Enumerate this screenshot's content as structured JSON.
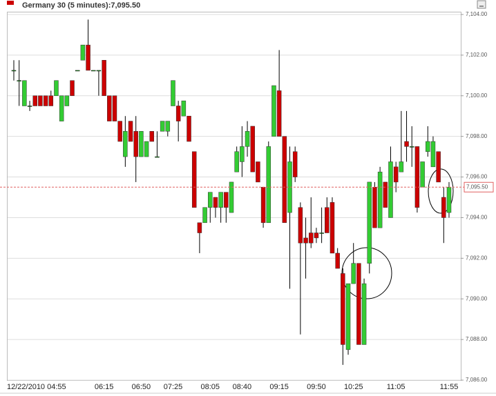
{
  "chart_data": {
    "type": "candlestick",
    "title": "Germany 30 (5 minutes):7,095.50",
    "categories": [
      "12/22/2010 04:55",
      null,
      null,
      null,
      null,
      null,
      null,
      null,
      null,
      null,
      null,
      null,
      null,
      null,
      null,
      null,
      null,
      "06:15",
      null,
      null,
      null,
      null,
      null,
      null,
      "06:50",
      null,
      null,
      null,
      null,
      null,
      "07:25",
      null,
      null,
      null,
      null,
      null,
      null,
      "08:05",
      null,
      null,
      null,
      null,
      null,
      "08:40",
      null,
      null,
      null,
      null,
      null,
      null,
      "09:15",
      null,
      null,
      null,
      null,
      null,
      null,
      "09:50",
      null,
      null,
      null,
      null,
      null,
      null,
      "10:25",
      null,
      null,
      null,
      null,
      null,
      null,
      null,
      "11:05",
      null,
      null,
      null,
      null,
      null,
      null,
      null,
      null,
      null,
      "11:55"
    ],
    "open": [
      7101.25,
      7100.75,
      7099.5,
      7099.5,
      7100,
      7100,
      7100,
      7100,
      7100,
      7098.75,
      7099.5,
      7100.75,
      7101.25,
      7101.75,
      7102.5,
      7101.25,
      7101.25,
      7101.75,
      7100,
      7100,
      7098.75,
      7097,
      7098.75,
      7098.25,
      7097,
      7097,
      7098.25,
      7097,
      7098.25,
      7098.25,
      7099.5,
      7099.5,
      7099,
      7099,
      7097.25,
      7093.75,
      7093.75,
      7094.5,
      7095,
      7094.5,
      7095.25,
      7094.25,
      7096.25,
      7096.75,
      7097.5,
      7098.5,
      7096.75,
      7095.5,
      7093.75,
      7098,
      7100.25,
      7098,
      7094.25,
      7097.25,
      7094.5,
      7093,
      7093.25,
      7093.25,
      7093.25,
      7094.5,
      7094.75,
      7092.25,
      7091.25,
      7087.5,
      7090.75,
      7091.75,
      7087.75,
      7091.75,
      7095.5,
      7093.5,
      7095.75,
      7094,
      7096.5,
      7096.25,
      7097.75,
      7097.5,
      7097.5,
      7095.5,
      7097.25,
      7096.5,
      7097.25,
      7095,
      7094.25
    ],
    "high": [
      7101.75,
      7101.75,
      7100.75,
      7099.75,
      7100,
      7100,
      7100,
      7100.25,
      7100.75,
      7100,
      7100,
      7100.75,
      7101.25,
      7102.5,
      7103.75,
      7101.25,
      7101.25,
      7101.75,
      7100,
      7100,
      7098.75,
      7099,
      7098.75,
      7099,
      7098.25,
      7097.75,
      7098.25,
      7098.25,
      7098.75,
      7098.75,
      7100.75,
      7099.75,
      7099.75,
      7099,
      7097.25,
      7093.75,
      7094.5,
      7095.25,
      7095,
      7095.25,
      7095.25,
      7095.75,
      7097.5,
      7098.5,
      7098.75,
      7098.5,
      7096.75,
      7095.5,
      7097.75,
      7100.5,
      7102.25,
      7098,
      7097.5,
      7097.5,
      7094.75,
      7094,
      7095,
      7093.5,
      7094.5,
      7095,
      7095,
      7092.5,
      7091.5,
      7090.75,
      7092.75,
      7091.75,
      7091,
      7095.75,
      7095.75,
      7096.5,
      7095.75,
      7097.5,
      7096.75,
      7099.25,
      7099.25,
      7098.5,
      7097.5,
      7096.75,
      7098.5,
      7098,
      7097.25,
      7095.5,
      7095.75
    ],
    "low": [
      7100.75,
      7099.5,
      7099.5,
      7099.25,
      7099.5,
      7099.5,
      7099.5,
      7099.5,
      7100,
      7098.75,
      7099.5,
      7100,
      7101.25,
      7101.75,
      7101.25,
      7101.25,
      7100,
      7100,
      7098.75,
      7098.75,
      7097.75,
      7096.5,
      7097.75,
      7095.75,
      7097,
      7097,
      7097.75,
      7097,
      7098.25,
      7098,
      7099.5,
      7097.75,
      7099,
      7097.75,
      7094.5,
      7092.25,
      7093.75,
      7093.75,
      7094,
      7093.75,
      7093.75,
      7094.25,
      7096.25,
      7096,
      7097,
      7096.25,
      7095.75,
      7093.5,
      7093.75,
      7098,
      7098,
      7093.75,
      7090.5,
      7095.75,
      7088.25,
      7091,
      7092.5,
      7092.75,
      7092.75,
      7093.25,
      7092.25,
      7091.5,
      7086.75,
      7087.25,
      7090.75,
      7087.75,
      7087.75,
      7091.25,
      7093.5,
      7093.5,
      7094.5,
      7094,
      7095.25,
      7096.25,
      7096.75,
      7096.5,
      7094.25,
      7095.5,
      7097,
      7096.5,
      7095.75,
      7092.75,
      7094
    ],
    "close": [
      7101.25,
      7100.75,
      7100.75,
      7099.5,
      7099.5,
      7099.5,
      7099.5,
      7099.5,
      7100.75,
      7100,
      7100,
      7100,
      7101.25,
      7102.5,
      7101.25,
      7101.25,
      7101.25,
      7100,
      7098.75,
      7098.75,
      7097.75,
      7098.25,
      7097.75,
      7097,
      7098.25,
      7097.75,
      7097.75,
      7097,
      7098.75,
      7098.75,
      7100.75,
      7098.75,
      7099.75,
      7097.75,
      7094.5,
      7093.25,
      7094.5,
      7095.25,
      7094.5,
      7095.25,
      7094.5,
      7095.75,
      7097.25,
      7097.5,
      7098.25,
      7096.25,
      7095.75,
      7093.75,
      7097.5,
      7100.5,
      7098,
      7093.75,
      7096.75,
      7096,
      7092.75,
      7092.75,
      7092.75,
      7093,
      7093.25,
      7093.25,
      7092.25,
      7091.5,
      7087.75,
      7090.75,
      7091.75,
      7087.75,
      7090.75,
      7095.75,
      7093.5,
      7096.25,
      7094.5,
      7096.75,
      7095.75,
      7096.75,
      7097.5,
      7097.5,
      7094.5,
      7096.75,
      7097.75,
      7097.75,
      7095.75,
      7094,
      7095.5
    ],
    "up_color": "#33cc33",
    "down_color": "#cc0000",
    "ylim": [
      7086,
      7104
    ],
    "yticks": [
      {
        "value": 7086,
        "label": "7,086.00"
      },
      {
        "value": 7088,
        "label": "7,088.00"
      },
      {
        "value": 7090,
        "label": "7,090.00"
      },
      {
        "value": 7092,
        "label": "7,092.00"
      },
      {
        "value": 7094,
        "label": "7,094.00"
      },
      {
        "value": 7096,
        "label": "7,096.00"
      },
      {
        "value": 7098,
        "label": "7,098.00"
      },
      {
        "value": 7100,
        "label": "7,100.00"
      },
      {
        "value": 7102,
        "label": "7,102.00"
      },
      {
        "value": 7104,
        "label": "7,104.00"
      }
    ],
    "last": {
      "value": 7095.5,
      "label": "7,095.50"
    },
    "grid": true
  }
}
